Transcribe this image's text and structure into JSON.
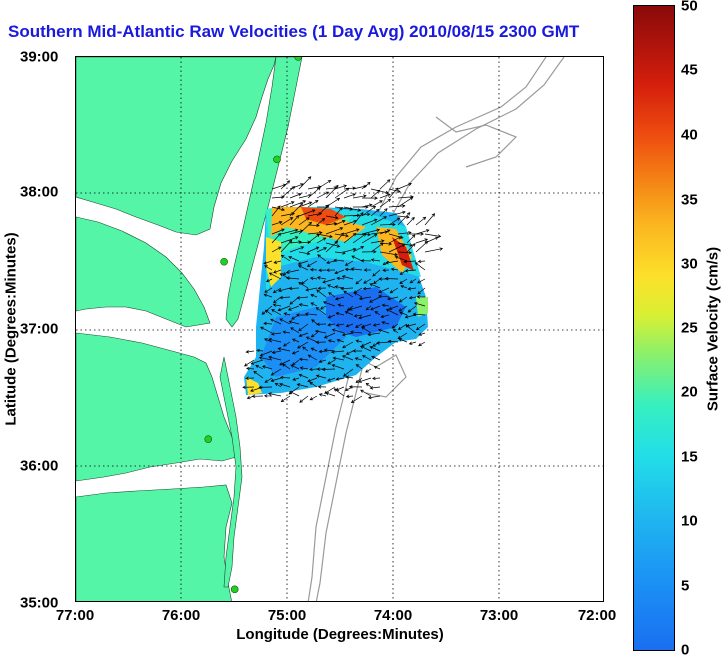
{
  "title": "Southern Mid-Atlantic Raw Velocities (1 Day Avg) 2010/08/15 2300 GMT",
  "axes": {
    "xlabel": "Longitude (Degrees:Minutes)",
    "ylabel": "Latitude (Degrees:Minutes)",
    "xticks": [
      "77:00",
      "76:00",
      "75:00",
      "74:00",
      "73:00",
      "72:00"
    ],
    "yticks": [
      "39:00",
      "38:00",
      "37:00",
      "36:00",
      "35:00"
    ],
    "grid": "dotted"
  },
  "colorbar": {
    "label": "Surface Velocity (cm/s)",
    "ticks": [
      "50",
      "45",
      "40",
      "35",
      "30",
      "25",
      "20",
      "15",
      "10",
      "5",
      "0"
    ],
    "range": [
      0,
      50
    ],
    "colors": [
      "#1a6ff0",
      "#22dde8",
      "#fde02a",
      "#ee4c10",
      "#8a0a0a"
    ]
  },
  "colors": {
    "land": "#55f5a8",
    "title": "#1a1adc",
    "bathymetry": "#9a9a9a",
    "station": "#22d022"
  },
  "stations": [
    {
      "lon": -74.9,
      "lat": 39.0
    },
    {
      "lon": -75.1,
      "lat": 38.25
    },
    {
      "lon": -75.6,
      "lat": 37.5
    },
    {
      "lon": -75.75,
      "lat": 36.2
    },
    {
      "lon": -75.5,
      "lat": 35.1
    }
  ]
}
